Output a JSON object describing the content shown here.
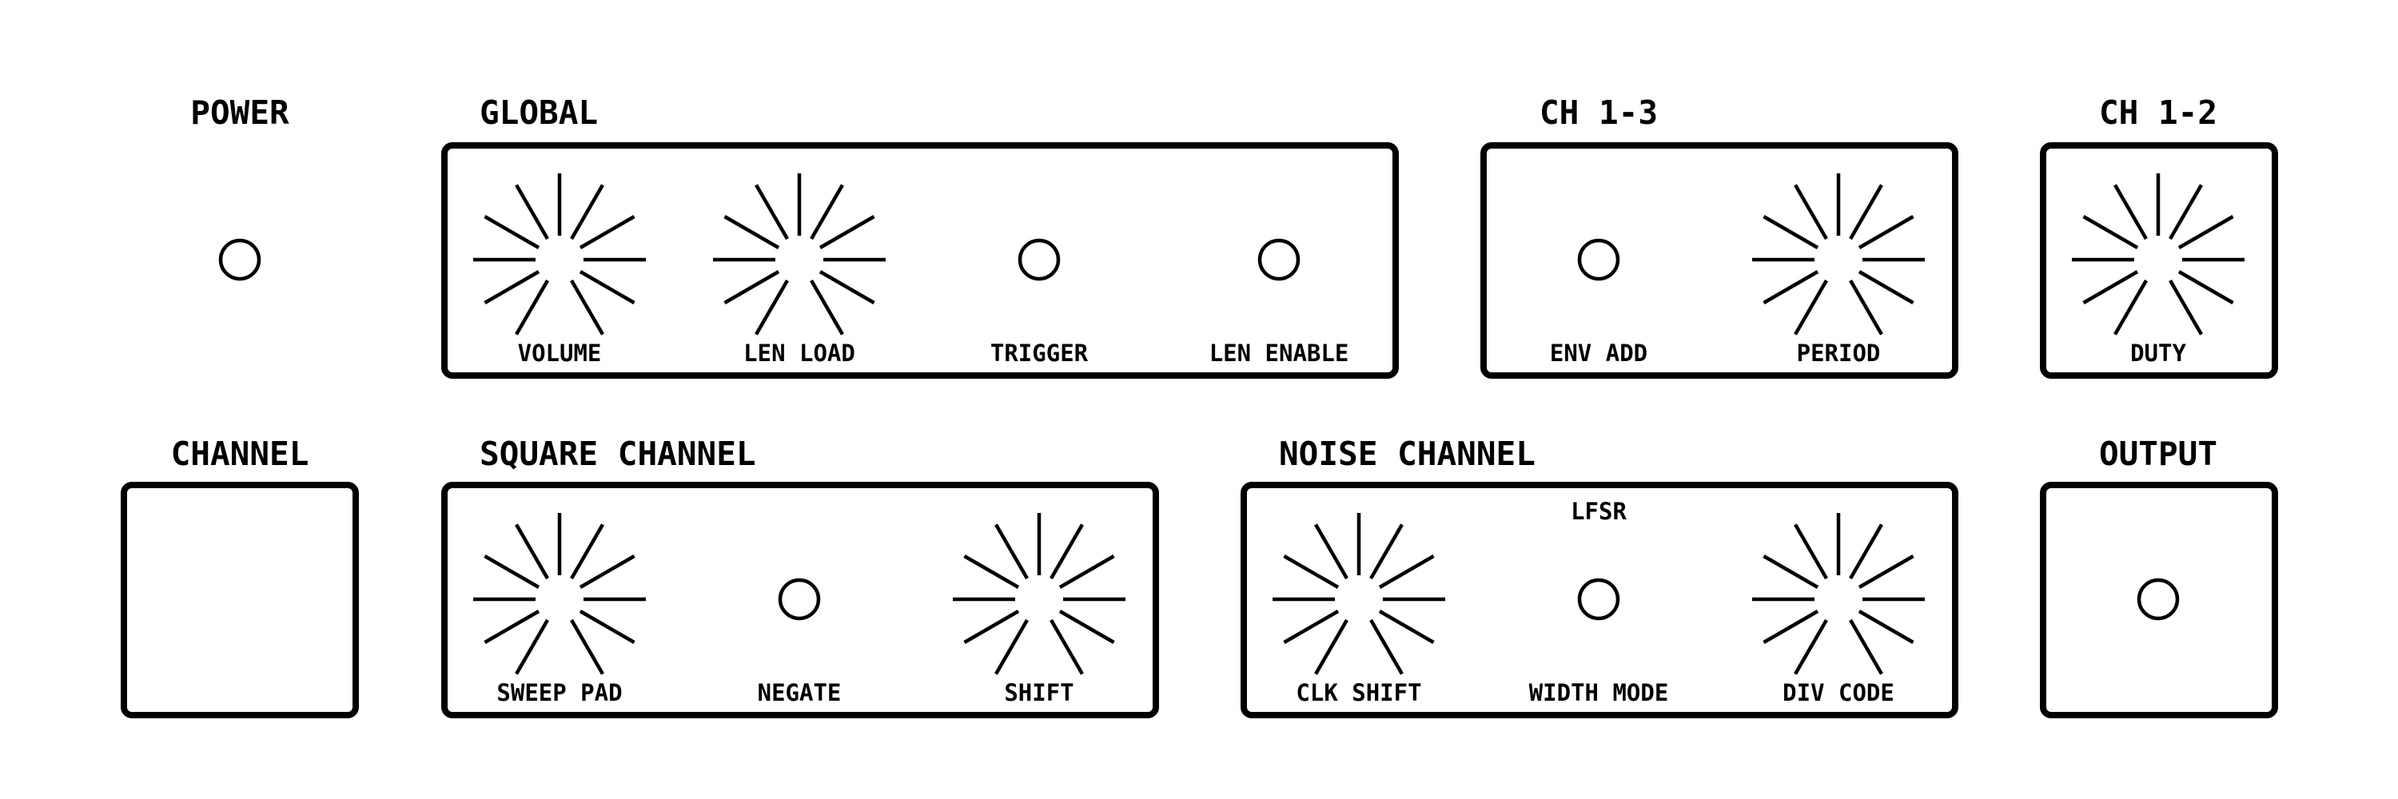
{
  "sections": {
    "power": "POWER",
    "global": "GLOBAL",
    "ch13": "CH 1-3",
    "ch12": "CH 1-2",
    "channel": "CHANNEL",
    "square": "SQUARE CHANNEL",
    "noise": "NOISE CHANNEL",
    "output": "OUTPUT"
  },
  "controls": {
    "volume": "VOLUME",
    "len_load": "LEN LOAD",
    "trigger": "TRIGGER",
    "len_enable": "LEN ENABLE",
    "env_add": "ENV ADD",
    "period": "PERIOD",
    "duty": "DUTY",
    "sweep_pad": "SWEEP PAD",
    "negate": "NEGATE",
    "shift": "SHIFT",
    "lfsr": "LFSR",
    "clk_shift": "CLK SHIFT",
    "width_mode": "WIDTH MODE",
    "div_code": "DIV CODE"
  }
}
